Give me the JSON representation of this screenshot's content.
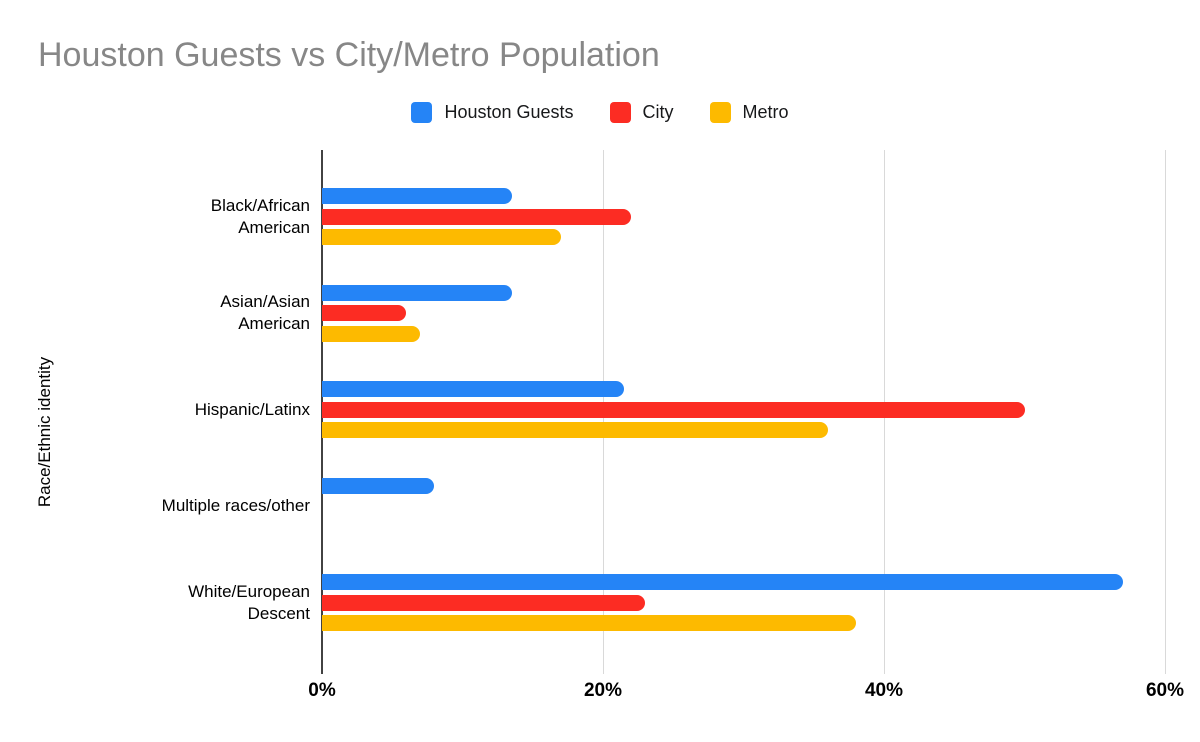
{
  "title": "Houston Guests vs City/Metro Population",
  "colors": {
    "blue": "#2584f6",
    "red": "#fc2c23",
    "yellow": "#fdba00",
    "title_gray": "#878787",
    "axis_dark": "#424242",
    "grid_light": "#d9d9d9",
    "text": "#000000"
  },
  "chart_data": {
    "type": "bar",
    "orientation": "horizontal",
    "title": "Houston Guests vs City/Metro Population",
    "xlabel": "",
    "ylabel": "Race/Ethnic identity",
    "categories": [
      "Black/African American",
      "Asian/Asian American",
      "Hispanic/Latinx",
      "Multiple races/other",
      "White/European Descent"
    ],
    "category_lines": [
      [
        "Black/African",
        "American"
      ],
      [
        "Asian/Asian",
        "American"
      ],
      [
        "Hispanic/Latinx"
      ],
      [
        "Multiple races/other"
      ],
      [
        "White/European",
        "Descent"
      ]
    ],
    "series": [
      {
        "name": "Houston Guests",
        "color": "#2584f6",
        "values": [
          13.5,
          13.5,
          21.5,
          8,
          57
        ]
      },
      {
        "name": "City",
        "color": "#fc2c23",
        "values": [
          22,
          6,
          50,
          0,
          23
        ]
      },
      {
        "name": "Metro",
        "color": "#fdba00",
        "values": [
          17,
          7,
          36,
          0,
          38
        ]
      }
    ],
    "x_ticks": [
      "0%",
      "20%",
      "40%",
      "60%"
    ],
    "x_tick_values": [
      0,
      20,
      40,
      60
    ],
    "xlim": [
      0,
      60
    ],
    "grid": true,
    "legend_position": "top",
    "unit": "percent"
  }
}
